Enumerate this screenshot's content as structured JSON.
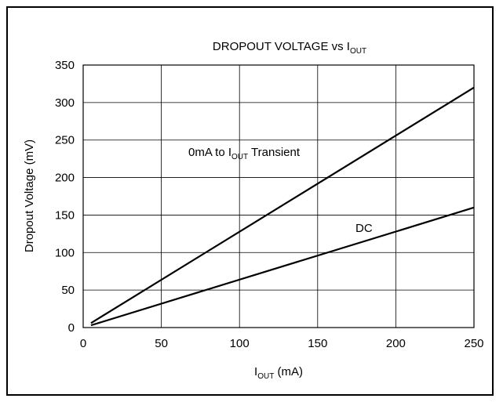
{
  "chart_data": {
    "type": "line",
    "title": "DROPOUT VOLTAGE vs I",
    "title_sub": "OUT",
    "xlabel": "I",
    "xlabel_sub": "OUT",
    "xlabel_unit": " (mA)",
    "ylabel": "Dropout Voltage (mV)",
    "xlim": [
      0,
      250
    ],
    "ylim": [
      0,
      350
    ],
    "xticks": [
      0,
      50,
      100,
      150,
      200,
      250
    ],
    "yticks": [
      0,
      50,
      100,
      150,
      200,
      250,
      300,
      350
    ],
    "grid": true,
    "series": [
      {
        "name": "Transient",
        "x": [
          5,
          250
        ],
        "y": [
          6,
          320
        ],
        "label_prefix": "0mA to I",
        "label_sub": "OUT",
        "label_suffix": " Transient"
      },
      {
        "name": "DC",
        "x": [
          5,
          250
        ],
        "y": [
          3,
          160
        ],
        "label_prefix": "DC",
        "label_sub": "",
        "label_suffix": ""
      }
    ]
  }
}
